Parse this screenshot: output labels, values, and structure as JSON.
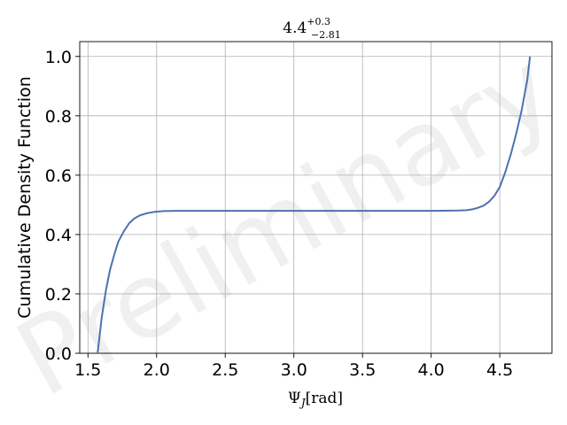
{
  "chart_data": {
    "type": "line",
    "title_main": "4.4",
    "title_sup": "+0.3",
    "title_sub": "−2.81",
    "xlabel_main": "Ψ",
    "xlabel_sub": "J",
    "xlabel_unit": "[rad]",
    "ylabel": "Cumulative Density Function",
    "watermark": "Preliminary",
    "xlim": [
      1.44,
      4.88
    ],
    "ylim": [
      0.0,
      1.05
    ],
    "xticks": [
      1.5,
      2.0,
      2.5,
      3.0,
      3.5,
      4.0,
      4.5
    ],
    "xtick_labels": [
      "1.5",
      "2.0",
      "2.5",
      "3.0",
      "3.5",
      "4.0",
      "4.5"
    ],
    "yticks": [
      0.0,
      0.2,
      0.4,
      0.6,
      0.8,
      1.0
    ],
    "ytick_labels": [
      "0.0",
      "0.2",
      "0.4",
      "0.6",
      "0.8",
      "1.0"
    ],
    "grid": true,
    "line_color": "#4c72b0",
    "series": [
      {
        "x": [
          1.57,
          1.6,
          1.63,
          1.66,
          1.69,
          1.72,
          1.76,
          1.8,
          1.84,
          1.88,
          1.93,
          1.98,
          2.05,
          2.15,
          2.3,
          2.5,
          3.0,
          3.5,
          4.0,
          4.2,
          4.26,
          4.3,
          4.34,
          4.38,
          4.42,
          4.46,
          4.5,
          4.54,
          4.58,
          4.62,
          4.66,
          4.7,
          4.72
        ],
        "y": [
          0.0,
          0.12,
          0.21,
          0.28,
          0.33,
          0.375,
          0.41,
          0.438,
          0.455,
          0.465,
          0.472,
          0.476,
          0.479,
          0.48,
          0.48,
          0.48,
          0.48,
          0.48,
          0.48,
          0.481,
          0.482,
          0.485,
          0.49,
          0.497,
          0.51,
          0.53,
          0.56,
          0.61,
          0.67,
          0.74,
          0.82,
          0.92,
          1.0
        ]
      }
    ]
  }
}
